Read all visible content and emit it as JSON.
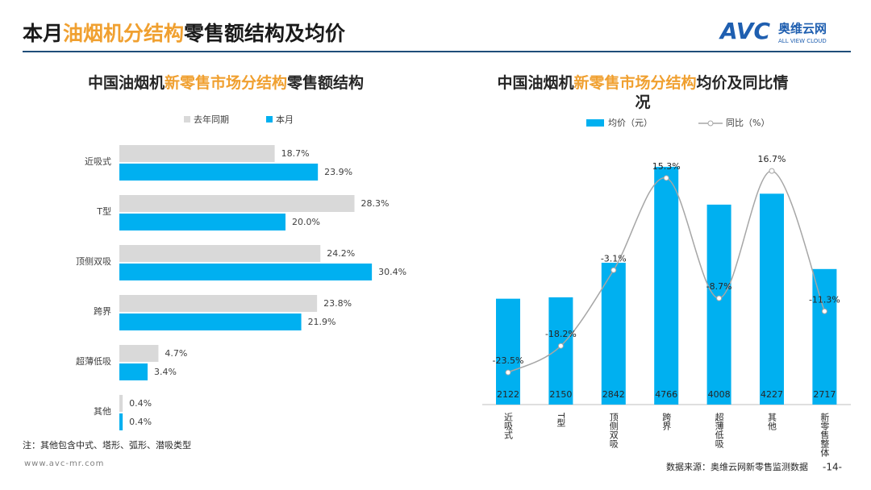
{
  "header": {
    "title": [
      "本月",
      "油烟机分结构",
      "零售额结构及均价"
    ],
    "logo": "AVC",
    "logo_cn": "奥维云网",
    "logo_en": "ALL VIEW CLOUD"
  },
  "chart_data": [
    {
      "type": "hbar",
      "title": [
        "中国油烟机",
        "新零售市场分结构",
        "零售额结构"
      ],
      "categories": [
        "近吸式",
        "T型",
        "顶侧双吸",
        "跨界",
        "超薄低吸",
        "其他"
      ],
      "series": [
        {
          "name": "去年同期",
          "color": "#d9d9d9",
          "values": [
            18.7,
            28.3,
            24.2,
            23.8,
            4.7,
            0.4
          ],
          "value_labels": [
            "18.7%",
            "28.3%",
            "24.2%",
            "23.8%",
            "4.7%",
            "0.4%"
          ]
        },
        {
          "name": "本月",
          "color": "#00b0f0",
          "values": [
            23.9,
            20.0,
            30.4,
            21.9,
            3.4,
            0.4
          ],
          "value_labels": [
            "23.9%",
            "20.0%",
            "30.4%",
            "21.9%",
            "3.4%",
            "0.4%"
          ]
        }
      ],
      "note": "注：其他包含中式、塔形、弧形、潜吸类型"
    },
    {
      "type": "bar-line",
      "title": [
        "中国油烟机",
        "新零售市场分结构",
        "均价及同比情况"
      ],
      "categories": [
        "近吸式",
        "T型",
        "顶侧双吸",
        "跨界",
        "超薄低吸",
        "其他",
        "新零售整体"
      ],
      "series": [
        {
          "name": "均价（元）",
          "color": "#00b0f0",
          "values": [
            2122,
            2150,
            2842,
            4766,
            4008,
            4227,
            2717
          ]
        },
        {
          "name": "同比（%）",
          "color": "#a6a6a6",
          "axis": "y2",
          "values": [
            -23.5,
            -18.2,
            -3.1,
            15.3,
            -8.7,
            16.7,
            -11.3
          ],
          "value_labels": [
            "-23.5%",
            "-18.2%",
            "-3.1%",
            "15.3%",
            "-8.7%",
            "16.7%",
            "-11.3%"
          ]
        }
      ]
    }
  ],
  "footer": {
    "url": "www.avc-mr.com",
    "source": "数据来源：奥维云网新零售监测数据",
    "page": "-14-"
  }
}
